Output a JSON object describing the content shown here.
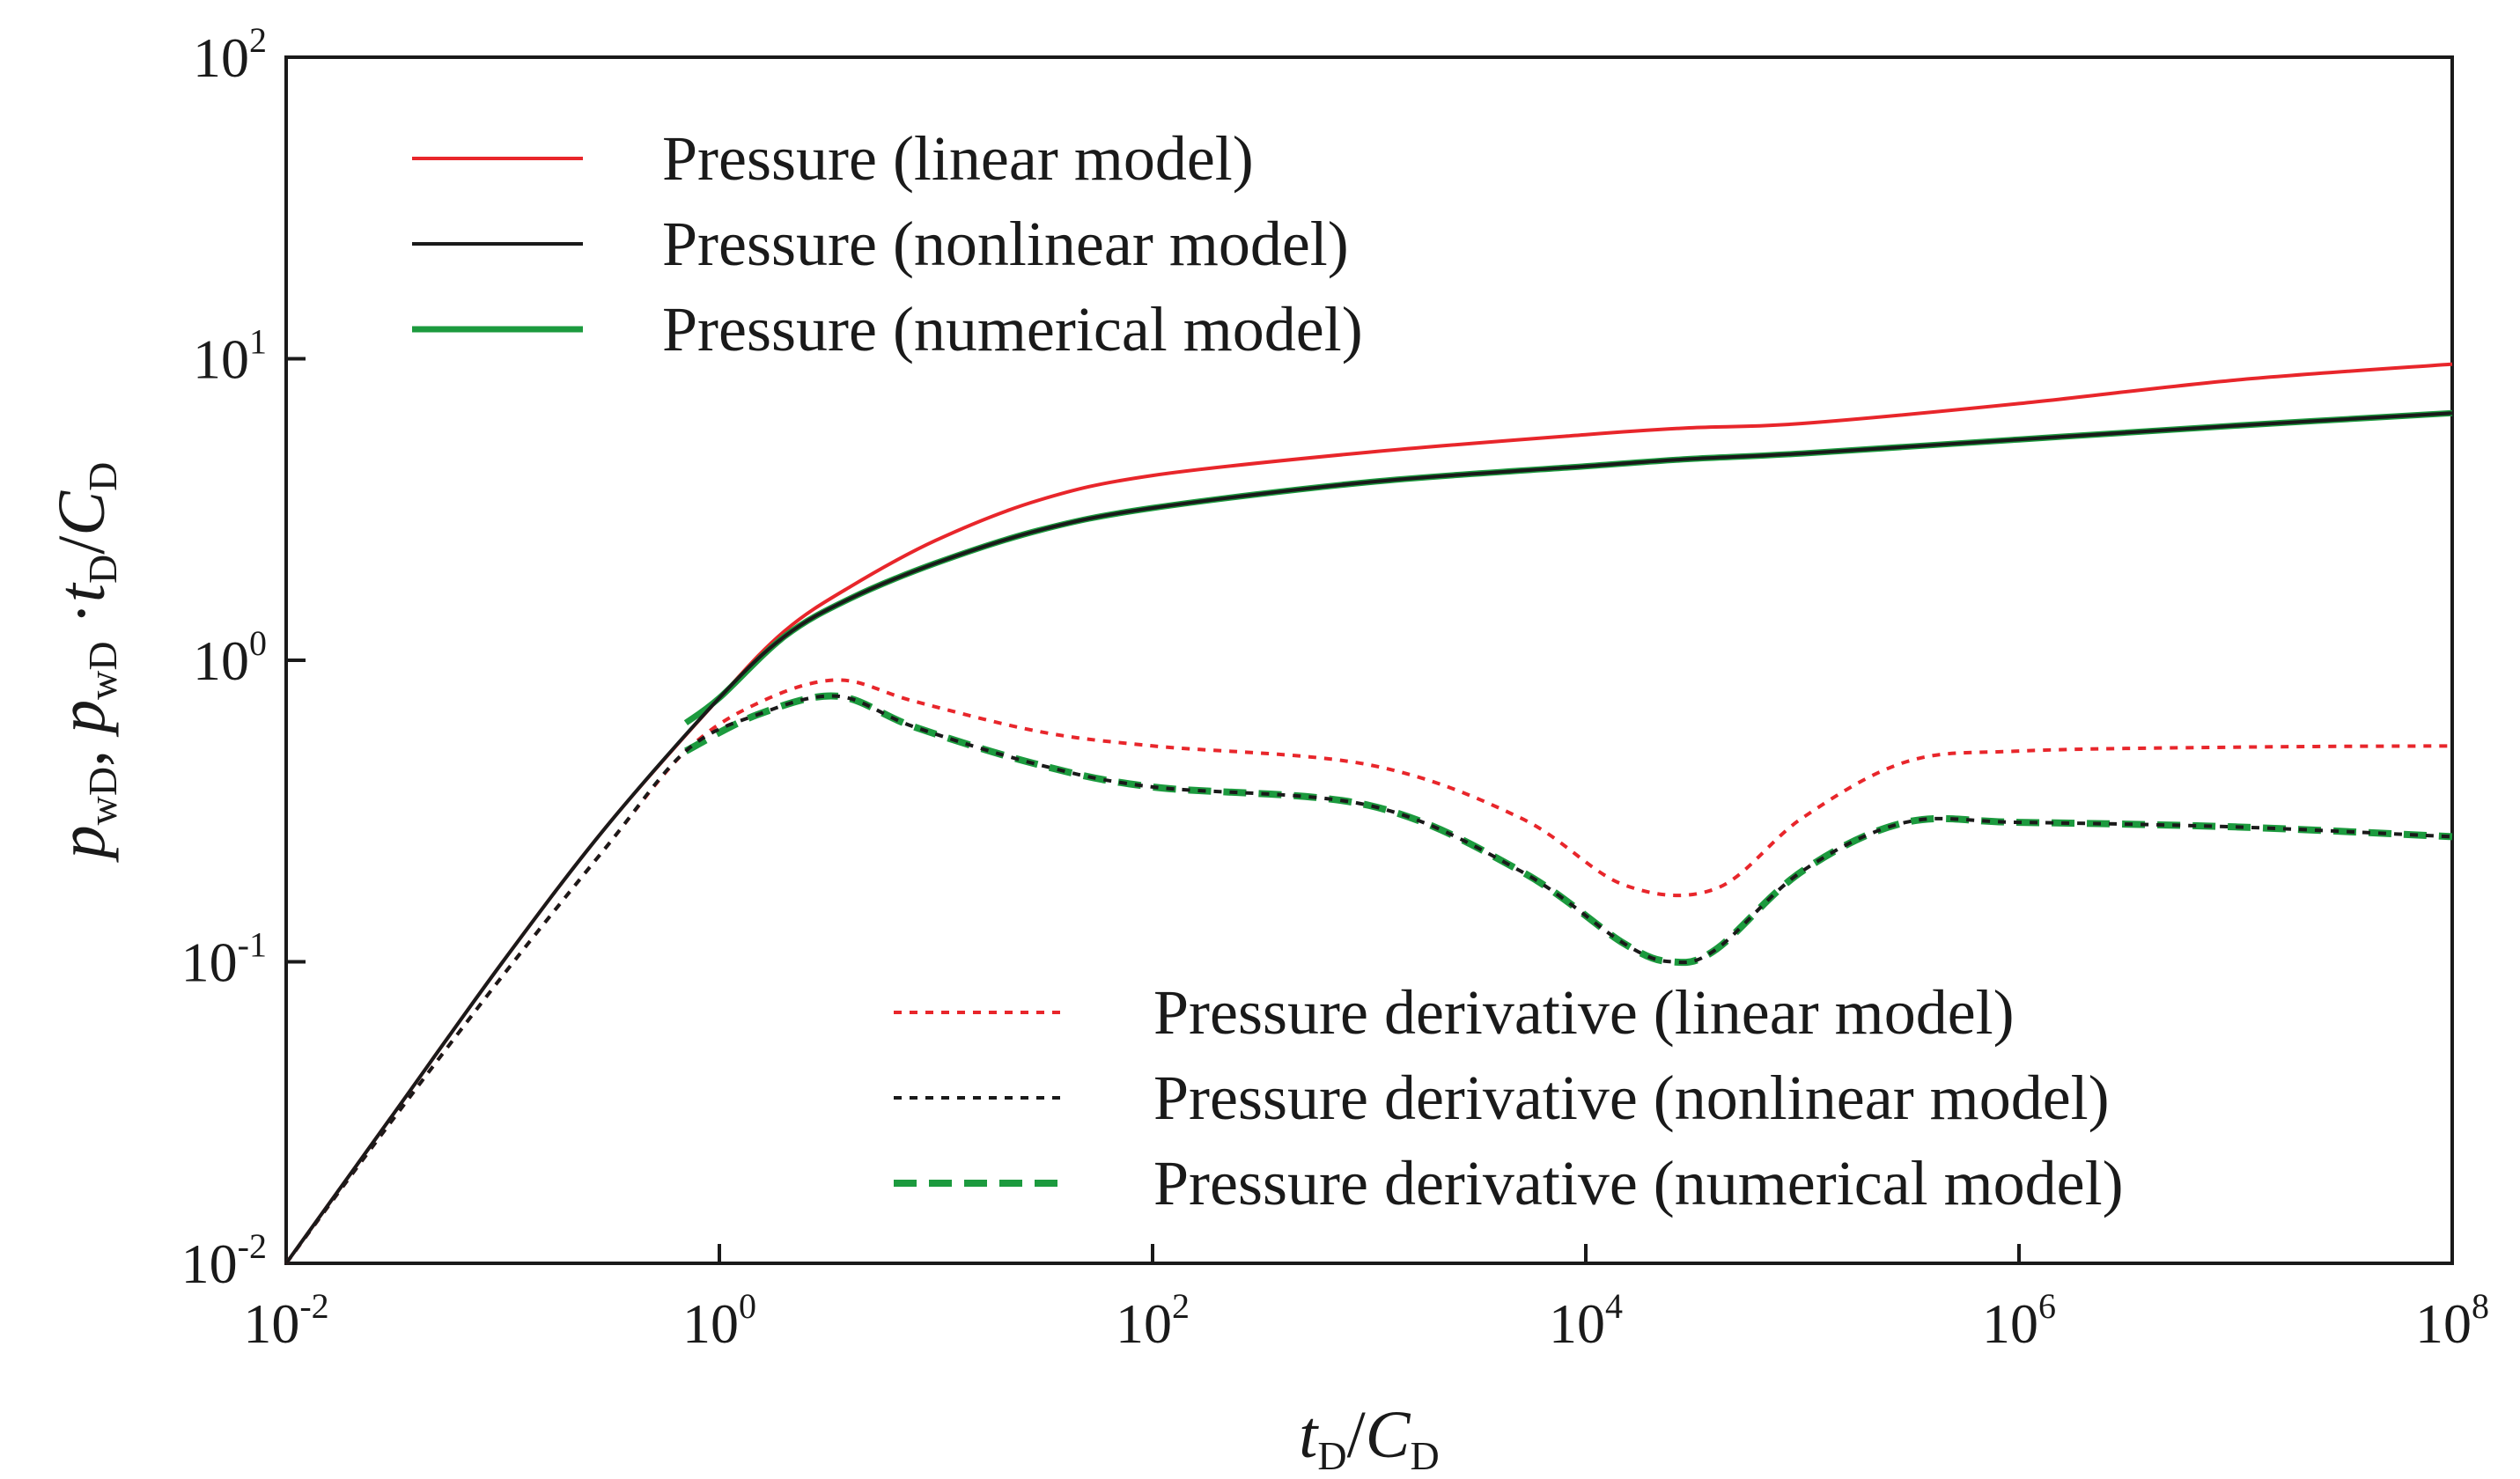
{
  "chart_data": {
    "type": "line",
    "x_scale": "log",
    "y_scale": "log",
    "xlim": [
      0.01,
      100000000
    ],
    "ylim": [
      0.01,
      100
    ],
    "xlabel": {
      "main": "t",
      "sub1": "D",
      "sep": "/",
      "main2": "C",
      "sub2": "D"
    },
    "ylabel": {
      "p1": "p",
      "s1": "wD",
      "comma": ", ",
      "p2": "p",
      "s2": "wD",
      "dot": " ·",
      "t": "t",
      "s3": "D",
      "slash": "/",
      "c": "C",
      "s4": "D"
    },
    "x_ticks": [
      {
        "base": "10",
        "exp": "-2",
        "value": 0.01
      },
      {
        "base": "10",
        "exp": "0",
        "value": 1
      },
      {
        "base": "10",
        "exp": "2",
        "value": 100
      },
      {
        "base": "10",
        "exp": "4",
        "value": 10000
      },
      {
        "base": "10",
        "exp": "6",
        "value": 1000000
      },
      {
        "base": "10",
        "exp": "8",
        "value": 100000000
      }
    ],
    "y_ticks": [
      {
        "base": "10",
        "exp": "-2",
        "value": 0.01
      },
      {
        "base": "10",
        "exp": "-1",
        "value": 0.1
      },
      {
        "base": "10",
        "exp": "0",
        "value": 1
      },
      {
        "base": "10",
        "exp": "1",
        "value": 10
      },
      {
        "base": "10",
        "exp": "2",
        "value": 100
      }
    ],
    "series": [
      {
        "key": "p_linear",
        "name": "Pressure (linear model)",
        "color": "#e8262b",
        "style": "solid",
        "x": [
          0.01,
          0.03,
          0.1,
          0.3,
          1,
          2,
          4,
          10,
          30,
          100,
          1000,
          10000,
          30000,
          100000,
          1000000,
          10000000,
          100000000
        ],
        "y": [
          0.01,
          0.03,
          0.1,
          0.28,
          0.75,
          1.25,
          1.75,
          2.5,
          3.4,
          4.1,
          4.9,
          5.6,
          5.9,
          6.1,
          7.1,
          8.5,
          9.6
        ]
      },
      {
        "key": "p_nonlinear",
        "name": "Pressure (nonlinear model)",
        "color": "#1a1a1a",
        "style": "solid",
        "x": [
          0.01,
          0.03,
          0.1,
          0.3,
          1,
          2,
          4,
          10,
          30,
          100,
          1000,
          10000,
          30000,
          100000,
          1000000,
          10000000,
          100000000
        ],
        "y": [
          0.01,
          0.03,
          0.1,
          0.28,
          0.75,
          1.2,
          1.6,
          2.1,
          2.7,
          3.2,
          3.9,
          4.4,
          4.65,
          4.85,
          5.4,
          6.0,
          6.6
        ]
      },
      {
        "key": "p_numerical",
        "name": "Pressure (numerical model)",
        "color": "#1c9a3e",
        "style": "thick",
        "x": [
          0.7,
          1,
          2,
          4,
          10,
          30,
          100,
          1000,
          10000,
          30000,
          100000,
          1000000,
          10000000,
          100000000
        ],
        "y": [
          0.62,
          0.75,
          1.2,
          1.6,
          2.1,
          2.7,
          3.2,
          3.9,
          4.4,
          4.65,
          4.85,
          5.4,
          6.0,
          6.6
        ]
      },
      {
        "key": "d_linear",
        "name": "Pressure derivative (linear model)",
        "color": "#e8262b",
        "style": "dotted",
        "x": [
          0.01,
          0.03,
          0.1,
          0.3,
          0.7,
          1.5,
          3.5,
          8,
          30,
          100,
          1000,
          5000,
          15000,
          40000,
          100000,
          300000,
          1000000,
          10000000,
          100000000
        ],
        "y": [
          0.01,
          0.029,
          0.09,
          0.24,
          0.5,
          0.72,
          0.86,
          0.73,
          0.58,
          0.52,
          0.45,
          0.3,
          0.18,
          0.175,
          0.3,
          0.46,
          0.5,
          0.515,
          0.52
        ]
      },
      {
        "key": "d_nonlinear",
        "name": "Pressure derivative (nonlinear model)",
        "color": "#1a1a1a",
        "style": "dotted",
        "x": [
          0.01,
          0.03,
          0.1,
          0.3,
          0.7,
          1.5,
          3.5,
          8,
          30,
          100,
          1000,
          5000,
          15000,
          25000,
          40000,
          100000,
          300000,
          1000000,
          10000000,
          100000000
        ],
        "y": [
          0.01,
          0.029,
          0.09,
          0.24,
          0.5,
          0.66,
          0.76,
          0.6,
          0.45,
          0.38,
          0.33,
          0.2,
          0.115,
          0.1,
          0.11,
          0.2,
          0.29,
          0.29,
          0.28,
          0.26
        ]
      },
      {
        "key": "d_numerical",
        "name": "Pressure derivative (numerical model)",
        "color": "#1c9a3e",
        "style": "dashed",
        "x": [
          0.7,
          1.5,
          3.5,
          8,
          30,
          100,
          1000,
          5000,
          15000,
          25000,
          40000,
          100000,
          300000,
          1000000,
          10000000,
          100000000
        ],
        "y": [
          0.5,
          0.66,
          0.76,
          0.6,
          0.45,
          0.38,
          0.33,
          0.2,
          0.115,
          0.1,
          0.11,
          0.2,
          0.29,
          0.29,
          0.28,
          0.26
        ]
      }
    ],
    "legend_top": [
      "p_linear",
      "p_nonlinear",
      "p_numerical"
    ],
    "legend_bottom": [
      "d_linear",
      "d_nonlinear",
      "d_numerical"
    ]
  }
}
